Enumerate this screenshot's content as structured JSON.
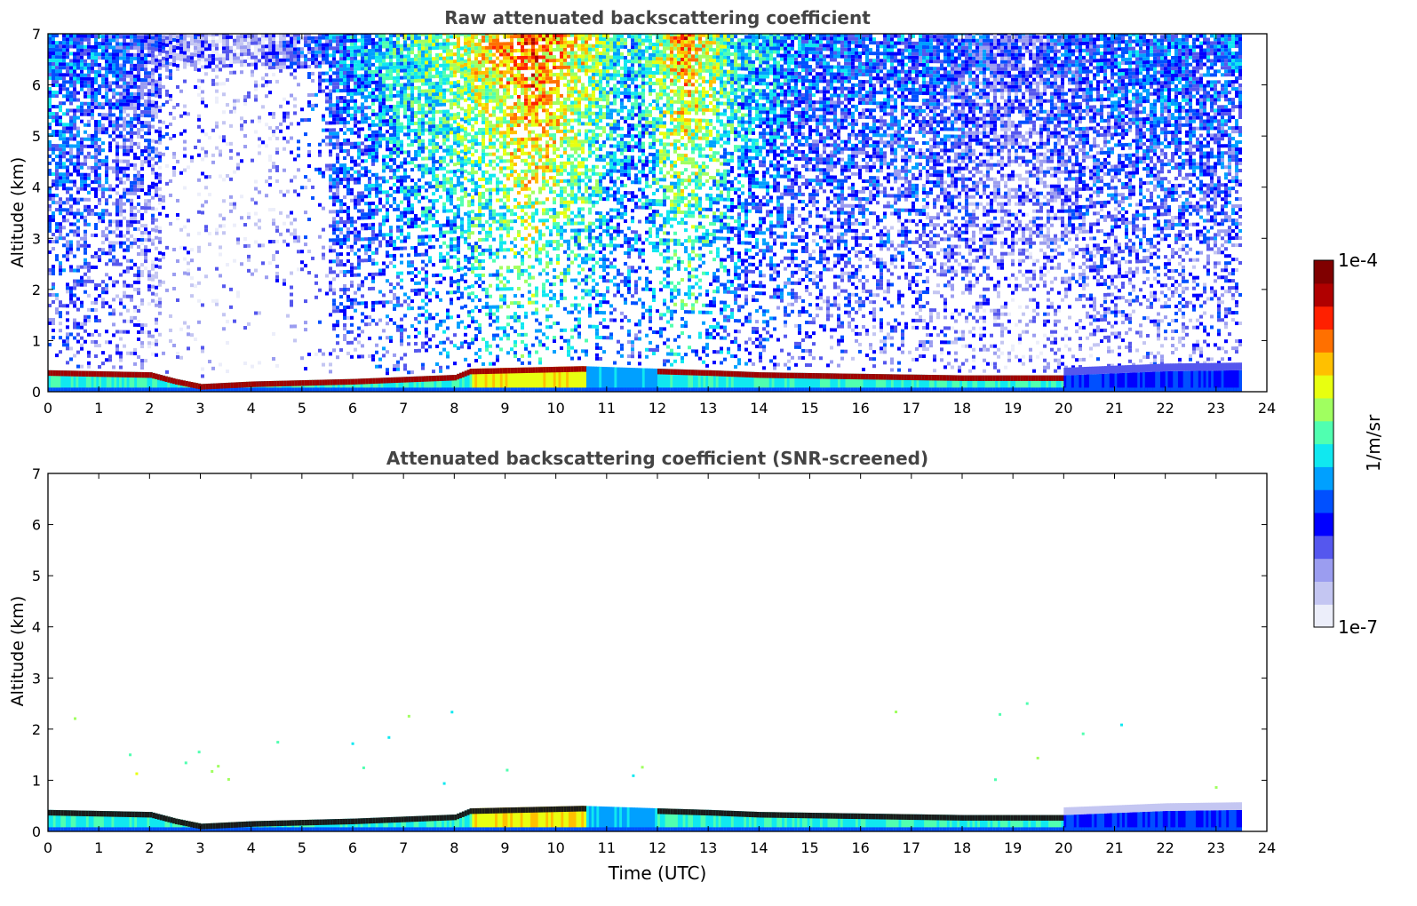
{
  "chart_data": [
    {
      "type": "heatmap",
      "title": "Raw attenuated backscattering coefficient",
      "xlabel": "",
      "ylabel": "Altitude (km)",
      "xlim": [
        0,
        24
      ],
      "ylim": [
        0,
        7
      ],
      "x_ticks": [
        "0",
        "1",
        "2",
        "3",
        "4",
        "5",
        "6",
        "7",
        "8",
        "9",
        "10",
        "11",
        "12",
        "13",
        "14",
        "15",
        "16",
        "17",
        "18",
        "19",
        "20",
        "21",
        "22",
        "23",
        "24"
      ],
      "y_ticks": [
        "0",
        "1",
        "2",
        "3",
        "4",
        "5",
        "6",
        "7"
      ],
      "data_end_hour": 23.5,
      "grid": false,
      "boundary_layer_top_km": [
        [
          0,
          0.42
        ],
        [
          2.0,
          0.38
        ],
        [
          2.5,
          0.25
        ],
        [
          3.0,
          0.15
        ],
        [
          4.0,
          0.2
        ],
        [
          6.0,
          0.25
        ],
        [
          8.0,
          0.33
        ],
        [
          8.3,
          0.45
        ],
        [
          10.5,
          0.5
        ],
        [
          12.0,
          0.45
        ],
        [
          13.0,
          0.42
        ],
        [
          14.0,
          0.38
        ],
        [
          16.0,
          0.35
        ],
        [
          18.0,
          0.32
        ],
        [
          20.0,
          0.32
        ],
        [
          22.0,
          0.4
        ],
        [
          23.5,
          0.42
        ]
      ],
      "upper_signal_level_by_hour": [
        [
          0,
          0.35
        ],
        [
          2.2,
          0.2
        ],
        [
          2.6,
          0.15
        ],
        [
          4.0,
          0.1
        ],
        [
          6.0,
          0.35
        ],
        [
          8.0,
          0.55
        ],
        [
          9.5,
          0.75
        ],
        [
          10.5,
          0.6
        ],
        [
          11.5,
          0.4
        ],
        [
          12.5,
          0.7
        ],
        [
          13.5,
          0.45
        ],
        [
          15.0,
          0.3
        ],
        [
          17.0,
          0.3
        ],
        [
          19.0,
          0.2
        ],
        [
          21.0,
          0.3
        ],
        [
          23.5,
          0.3
        ]
      ]
    },
    {
      "type": "heatmap",
      "title": "Attenuated backscattering coefficient (SNR-screened)",
      "xlabel": "Time (UTC)",
      "ylabel": "Altitude (km)",
      "xlim": [
        0,
        24
      ],
      "ylim": [
        0,
        7
      ],
      "x_ticks": [
        "0",
        "1",
        "2",
        "3",
        "4",
        "5",
        "6",
        "7",
        "8",
        "9",
        "10",
        "11",
        "12",
        "13",
        "14",
        "15",
        "16",
        "17",
        "18",
        "19",
        "20",
        "21",
        "22",
        "23",
        "24"
      ],
      "y_ticks": [
        "0",
        "1",
        "2",
        "3",
        "4",
        "5",
        "6",
        "7"
      ],
      "data_end_hour": 23.5,
      "grid": false
    }
  ],
  "colorbar": {
    "label": "1/m/sr",
    "max_label": "1e-4",
    "min_label": "1e-7",
    "scale": "log",
    "colormap": "jet",
    "colors": [
      "#eceefa",
      "#c4c6f2",
      "#9b9df0",
      "#5557ee",
      "#0000ff",
      "#0050ff",
      "#00a0ff",
      "#10e8f0",
      "#50ffb0",
      "#a0ff60",
      "#e8ff10",
      "#ffc000",
      "#ff7000",
      "#ff2000",
      "#b00000",
      "#800000"
    ]
  }
}
